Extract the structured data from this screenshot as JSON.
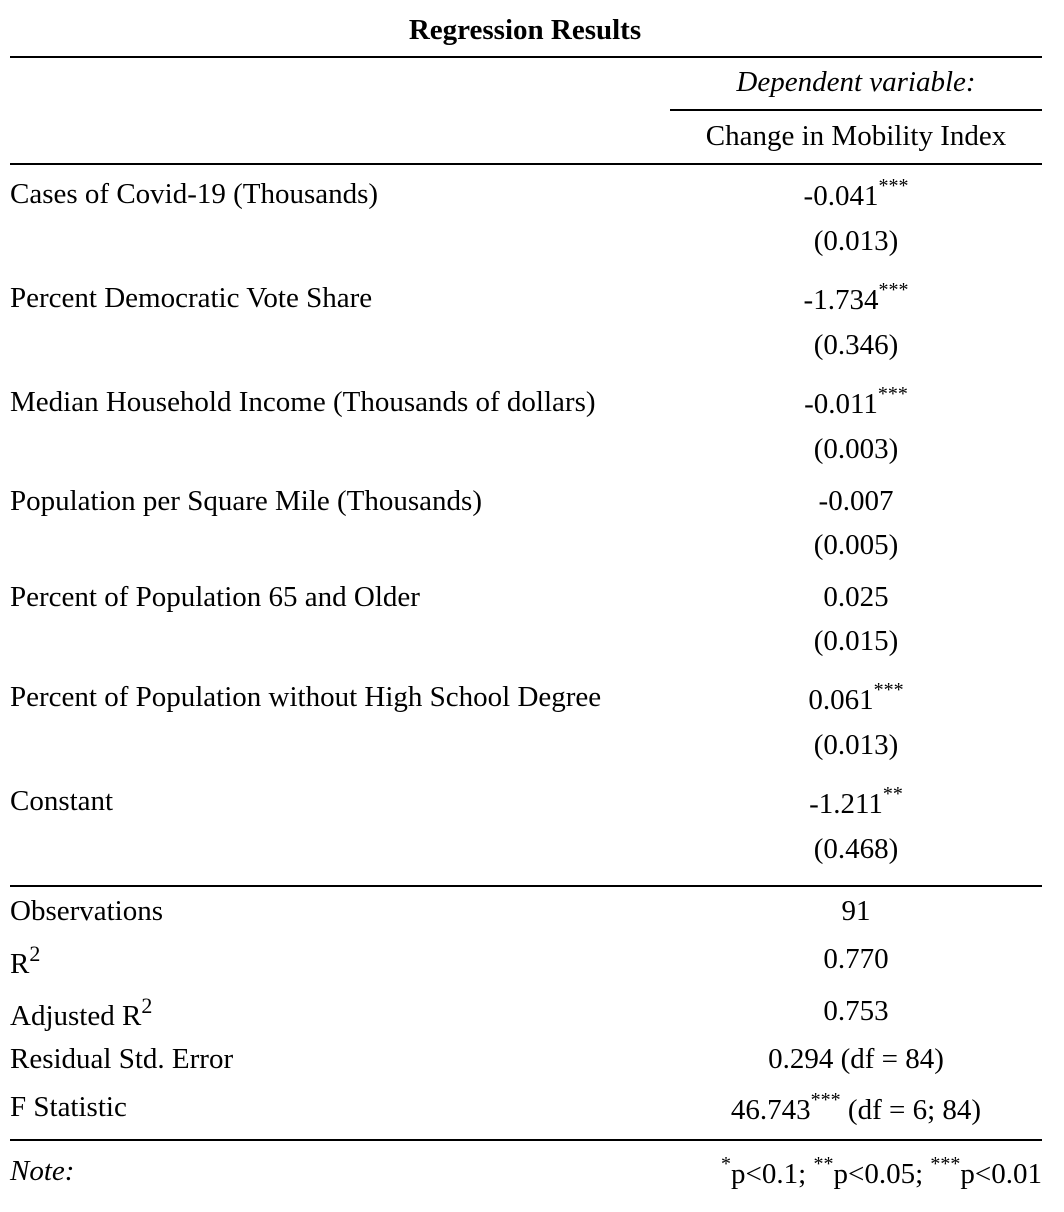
{
  "title": "Regression Results",
  "header": {
    "dependent_variable_label": "Dependent variable:",
    "dependent_variable_name": "Change in Mobility Index"
  },
  "coefficients": [
    {
      "label": "Cases of Covid-19 (Thousands)",
      "estimate": "-0.041",
      "stars": "***",
      "se": "(0.013)"
    },
    {
      "label": "Percent Democratic Vote Share",
      "estimate": "-1.734",
      "stars": "***",
      "se": "(0.346)"
    },
    {
      "label": "Median Household Income (Thousands of dollars)",
      "estimate": "-0.011",
      "stars": "***",
      "se": "(0.003)"
    },
    {
      "label": "Population per Square Mile (Thousands)",
      "estimate": "-0.007",
      "stars": "",
      "se": "(0.005)"
    },
    {
      "label": "Percent of Population 65 and Older",
      "estimate": "0.025",
      "stars": "",
      "se": "(0.015)"
    },
    {
      "label": "Percent of Population without High School Degree",
      "estimate": "0.061",
      "stars": "***",
      "se": "(0.013)"
    },
    {
      "label": "Constant",
      "estimate": "-1.211",
      "stars": "**",
      "se": "(0.468)"
    }
  ],
  "stats": {
    "observations_label": "Observations",
    "observations_value": "91",
    "r2_label": "R",
    "r2_sup": "2",
    "r2_value": "0.770",
    "adj_r2_label": "Adjusted R",
    "adj_r2_sup": "2",
    "adj_r2_value": "0.753",
    "rse_label": "Residual Std. Error",
    "rse_value": "0.294 (df = 84)",
    "f_label": "F Statistic",
    "f_value": "46.743",
    "f_stars": "***",
    "f_df": " (df = 6; 84)"
  },
  "note": {
    "label": "Note:",
    "s1": "*",
    "t1": "p<0.1; ",
    "s2": "**",
    "t2": "p<0.05; ",
    "s3": "***",
    "t3": "p<0.01"
  }
}
